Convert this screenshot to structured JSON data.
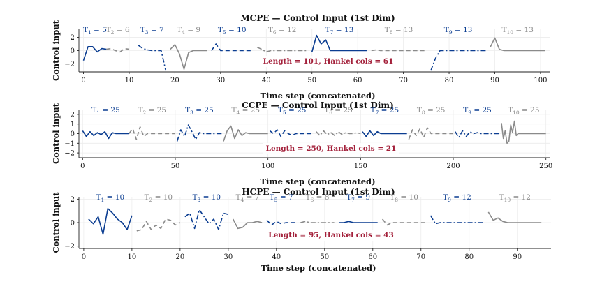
{
  "figure": {
    "ylabel": "Control input",
    "xlabel": "Time step (concatenated)"
  },
  "colors": {
    "blue": "#0b3d91",
    "gray": "#8a8a8a",
    "info": "#a3203a"
  },
  "chart_data": [
    {
      "type": "line",
      "title": "MCPE — Control Input (1st Dim)",
      "xlabel": "Time step (concatenated)",
      "ylabel": "Control input",
      "xlim": [
        -1,
        102
      ],
      "ylim": [
        -3.2,
        3.2
      ],
      "xticks": [
        0,
        10,
        20,
        30,
        40,
        50,
        60,
        70,
        80,
        90,
        100
      ],
      "yticks": [
        -2,
        0,
        2
      ],
      "info": "Length = 101,  Hankel cols = 61",
      "segments": [
        {
          "label": "T1 = 5",
          "x": [
            0,
            1,
            2,
            3,
            4,
            5
          ],
          "y": [
            -1.5,
            0.6,
            0.6,
            -0.2,
            0.3,
            0.2
          ]
        },
        {
          "label": "T2 = 6",
          "x": [
            5,
            6,
            7,
            8,
            9,
            10
          ],
          "y": [
            0.2,
            0.3,
            0.0,
            -0.2,
            0.3,
            0.2
          ]
        },
        {
          "label": "T3 = 7",
          "x": [
            12,
            13,
            14,
            15,
            16,
            17,
            18
          ],
          "y": [
            0.8,
            0.3,
            0.1,
            0.0,
            0.0,
            0.0,
            -3.0
          ]
        },
        {
          "label": "T4 = 9",
          "x": [
            19,
            20,
            21,
            22,
            23,
            24,
            25,
            26,
            27
          ],
          "y": [
            0.2,
            0.9,
            -0.5,
            -2.8,
            -0.3,
            0.0,
            0.0,
            0.0,
            0.0
          ]
        },
        {
          "label": "T5 = 10",
          "x": [
            28,
            29,
            30,
            31,
            32,
            33,
            34,
            35,
            36,
            37
          ],
          "y": [
            0.0,
            1.0,
            0.0,
            0.0,
            0.0,
            0.0,
            0.0,
            0.0,
            0.0,
            0.0
          ]
        },
        {
          "label": "T6 = 12",
          "x": [
            38,
            39,
            40,
            41,
            42,
            43,
            44,
            45,
            46,
            47,
            48,
            49
          ],
          "y": [
            0.5,
            0.2,
            -0.2,
            0.0,
            0.0,
            0.0,
            0.0,
            0.0,
            0.0,
            0.0,
            0.0,
            0.0
          ]
        },
        {
          "label": "T7 = 13",
          "x": [
            50,
            51,
            52,
            53,
            54,
            55,
            56,
            57,
            58,
            59,
            60,
            61,
            62
          ],
          "y": [
            -0.2,
            2.3,
            1.0,
            1.6,
            0.0,
            0.0,
            0.0,
            0.0,
            0.0,
            0.0,
            0.0,
            0.0,
            0.0
          ]
        },
        {
          "label": "T8 = 13",
          "x": [
            63,
            64,
            65,
            66,
            67,
            68,
            69,
            70,
            71,
            72,
            73,
            74,
            75
          ],
          "y": [
            0.0,
            0.1,
            0.0,
            0.0,
            0.0,
            0.0,
            0.0,
            0.0,
            0.0,
            0.0,
            0.0,
            0.0,
            0.0
          ]
        },
        {
          "label": "T9 = 13",
          "x": [
            76,
            77,
            78,
            79,
            80,
            81,
            82,
            83,
            84,
            85,
            86,
            87,
            88
          ],
          "y": [
            -3.0,
            -1.2,
            0.0,
            0.0,
            0.0,
            0.0,
            0.0,
            0.0,
            0.0,
            0.0,
            0.0,
            0.0,
            0.0
          ]
        },
        {
          "label": "T10 = 13",
          "x": [
            89,
            90,
            91,
            92,
            93,
            94,
            95,
            96,
            97,
            98,
            99,
            100,
            101
          ],
          "y": [
            0.5,
            1.9,
            0.2,
            0.0,
            0.0,
            0.0,
            0.0,
            0.0,
            0.0,
            0.0,
            0.0,
            0.0,
            0.0
          ]
        }
      ]
    },
    {
      "type": "line",
      "title": "CCPE — Control Input (1st Dim)",
      "xlabel": "Time step (concatenated)",
      "ylabel": "Control input",
      "xlim": [
        -2,
        252
      ],
      "ylim": [
        -2.5,
        2.5
      ],
      "xticks": [
        0,
        50,
        100,
        150,
        200,
        250
      ],
      "yticks": [
        -2,
        -1,
        0,
        1,
        2
      ],
      "info": "Length = 250,  Hankel cols = 21",
      "segments": [
        {
          "label": "T1 = 25",
          "x": [
            0,
            2,
            4,
            6,
            8,
            10,
            12,
            14,
            16,
            18,
            20,
            22,
            24,
            25
          ],
          "y": [
            0.3,
            -0.3,
            0.2,
            -0.2,
            0.1,
            -0.1,
            0.2,
            -0.5,
            0.1,
            0.0,
            0.0,
            0.0,
            0.0,
            0.0
          ]
        },
        {
          "label": "T2 = 25",
          "x": [
            25,
            27,
            29,
            31,
            33,
            35,
            37,
            39,
            42,
            46,
            50
          ],
          "y": [
            0.0,
            0.5,
            -0.6,
            0.7,
            -0.3,
            0.0,
            0.0,
            0.0,
            0.0,
            0.0,
            0.0
          ]
        },
        {
          "label": "T3 = 25",
          "x": [
            51,
            53,
            55,
            57,
            59,
            61,
            63,
            65,
            68,
            72,
            75
          ],
          "y": [
            -0.8,
            0.4,
            -0.3,
            0.9,
            0.2,
            -0.6,
            0.1,
            0.0,
            0.0,
            0.0,
            0.0
          ]
        },
        {
          "label": "T4 = 25",
          "x": [
            76,
            78,
            80,
            82,
            84,
            86,
            88,
            90,
            94,
            98,
            100
          ],
          "y": [
            -0.8,
            0.3,
            0.8,
            -0.5,
            0.4,
            -0.2,
            0.1,
            0.0,
            0.0,
            0.0,
            0.0
          ]
        },
        {
          "label": "T5 = 25",
          "x": [
            101,
            103,
            105,
            107,
            109,
            111,
            113,
            115,
            119,
            123,
            125
          ],
          "y": [
            0.3,
            0.0,
            0.4,
            -0.3,
            0.3,
            0.0,
            -0.2,
            0.0,
            0.0,
            0.0,
            0.0
          ]
        },
        {
          "label": "T6 = 25",
          "x": [
            126,
            128,
            130,
            132,
            134,
            136,
            138,
            140,
            142,
            144,
            146,
            148,
            150
          ],
          "y": [
            0.2,
            -0.2,
            0.3,
            -0.1,
            0.1,
            -0.2,
            0.2,
            -0.1,
            0.1,
            0.0,
            0.0,
            0.1,
            0.0
          ]
        },
        {
          "label": "T7 = 25",
          "x": [
            151,
            153,
            155,
            157,
            159,
            161,
            163,
            166,
            170,
            174,
            175
          ],
          "y": [
            0.2,
            -0.3,
            0.3,
            -0.2,
            0.2,
            0.0,
            0.0,
            0.0,
            0.0,
            0.0,
            0.0
          ]
        },
        {
          "label": "T8 = 25",
          "x": [
            176,
            178,
            180,
            182,
            184,
            186,
            188,
            192,
            196,
            200
          ],
          "y": [
            -0.6,
            0.4,
            -0.2,
            0.5,
            -0.4,
            0.6,
            0.0,
            0.0,
            0.0,
            0.0
          ]
        },
        {
          "label": "T9 = 25",
          "x": [
            201,
            203,
            205,
            207,
            209,
            211,
            213,
            215,
            219,
            223,
            225
          ],
          "y": [
            0.2,
            -0.4,
            0.3,
            -0.3,
            0.2,
            0.0,
            0.1,
            0.0,
            0.0,
            0.0,
            0.0
          ]
        },
        {
          "label": "T10 = 25",
          "x": [
            226,
            227,
            228,
            229,
            230,
            231,
            232,
            233,
            234,
            235,
            236,
            240,
            245,
            250
          ],
          "y": [
            1.1,
            -0.5,
            0.3,
            -1.0,
            -0.8,
            0.9,
            0.1,
            1.3,
            -0.2,
            0.0,
            0.0,
            0.0,
            0.0,
            0.0
          ]
        }
      ]
    },
    {
      "type": "line",
      "title": "HCPE — Control Input (1st Dim)",
      "xlabel": "Time step (concatenated)",
      "ylabel": "Control input",
      "xlim": [
        -1,
        97
      ],
      "ylim": [
        -2.2,
        2.2
      ],
      "xticks": [
        0,
        10,
        20,
        30,
        40,
        50,
        60,
        70,
        80,
        90
      ],
      "yticks": [
        -2,
        0,
        2
      ],
      "info": "Length = 95,  Hankel cols = 43",
      "segments": [
        {
          "label": "T1 = 10",
          "x": [
            1,
            2,
            3,
            4,
            5,
            6,
            7,
            8,
            9,
            10
          ],
          "y": [
            0.3,
            -0.1,
            0.5,
            -1.0,
            1.2,
            0.8,
            0.3,
            0.0,
            -0.6,
            0.6
          ]
        },
        {
          "label": "T2 = 10",
          "x": [
            11,
            12,
            13,
            14,
            15,
            16,
            17,
            18,
            19,
            20
          ],
          "y": [
            -0.7,
            -0.6,
            0.1,
            -0.6,
            -0.2,
            -0.5,
            0.3,
            0.2,
            -0.2,
            0.0
          ]
        },
        {
          "label": "T3 = 10",
          "x": [
            21,
            22,
            23,
            24,
            25,
            26,
            27,
            28,
            29,
            30
          ],
          "y": [
            0.5,
            0.8,
            -0.5,
            1.1,
            0.5,
            -0.1,
            0.3,
            -0.6,
            0.8,
            0.7
          ]
        },
        {
          "label": "T4 = 7",
          "x": [
            31,
            32,
            33,
            34,
            35,
            36,
            37
          ],
          "y": [
            0.3,
            -0.5,
            -0.4,
            0.0,
            0.0,
            0.1,
            0.0
          ]
        },
        {
          "label": "T5 = 7",
          "x": [
            38,
            39,
            40,
            41,
            42,
            43,
            44
          ],
          "y": [
            0.2,
            -0.2,
            0.1,
            -0.1,
            0.0,
            0.0,
            0.0
          ]
        },
        {
          "label": "T6 = 8",
          "x": [
            45,
            46,
            47,
            48,
            49,
            50,
            51,
            52
          ],
          "y": [
            0.0,
            0.1,
            0.0,
            0.0,
            0.0,
            0.0,
            0.0,
            0.0
          ]
        },
        {
          "label": "T7 = 9",
          "x": [
            53,
            54,
            55,
            56,
            57,
            58,
            59,
            60,
            61
          ],
          "y": [
            0.0,
            0.0,
            0.1,
            0.0,
            0.0,
            0.0,
            0.0,
            0.0,
            0.0
          ]
        },
        {
          "label": "T8 = 10",
          "x": [
            62,
            63,
            64,
            65,
            66,
            67,
            68,
            69,
            70,
            71
          ],
          "y": [
            0.3,
            -0.2,
            0.0,
            0.0,
            0.0,
            0.0,
            0.0,
            0.0,
            0.0,
            0.0
          ]
        },
        {
          "label": "T9 = 12",
          "x": [
            72,
            73,
            74,
            75,
            76,
            77,
            78,
            79,
            80,
            81,
            82,
            83
          ],
          "y": [
            0.6,
            -0.1,
            0.0,
            0.0,
            0.0,
            0.0,
            0.0,
            0.0,
            0.0,
            0.0,
            0.0,
            0.0
          ]
        },
        {
          "label": "T10 = 12",
          "x": [
            84,
            85,
            86,
            87,
            88,
            89,
            90,
            91,
            92,
            93,
            94,
            95
          ],
          "y": [
            0.9,
            0.2,
            0.4,
            0.1,
            0.0,
            0.0,
            0.0,
            0.0,
            0.0,
            0.0,
            0.0,
            0.0
          ]
        }
      ]
    }
  ]
}
